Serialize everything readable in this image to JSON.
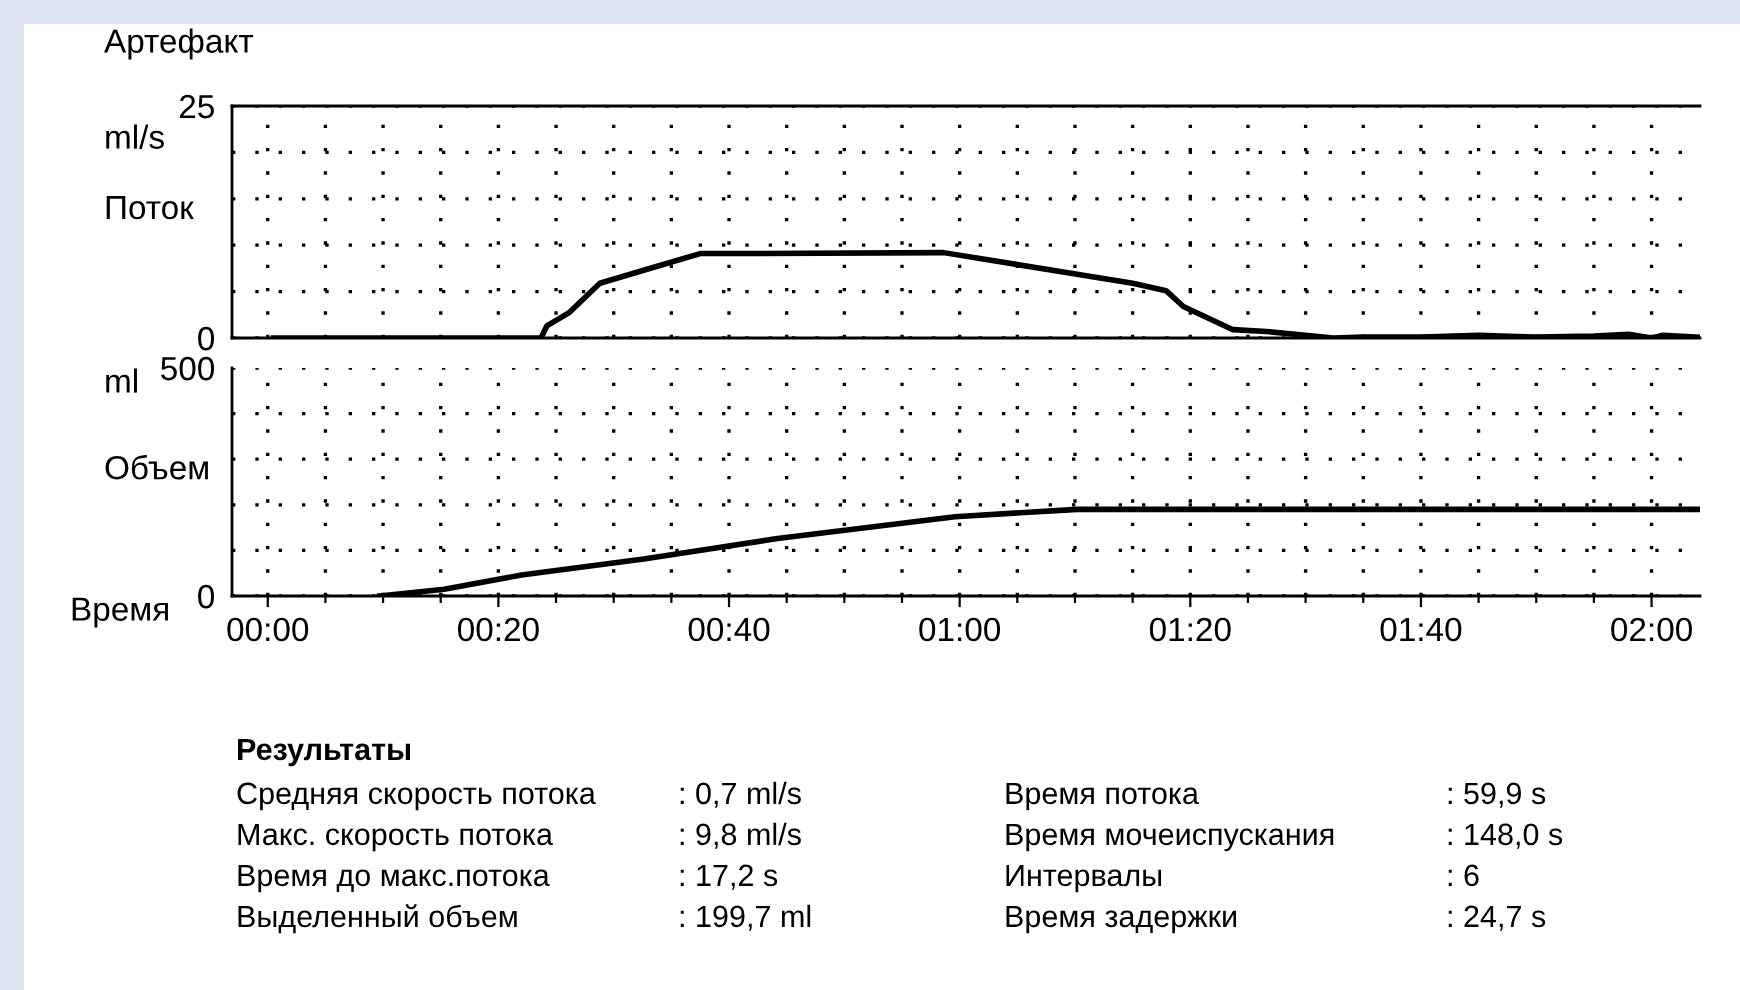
{
  "chart_data": [
    {
      "type": "line",
      "ylabel": "Поток",
      "annotations": [
        "Артефакт",
        "ml/s"
      ],
      "xlim": [
        -3.1,
        124.2
      ],
      "ylim": [
        0,
        25
      ],
      "xticks": [
        {
          "value": 0,
          "label": null
        },
        {
          "value": 5,
          "label": null
        },
        {
          "value": 10,
          "label": null
        },
        {
          "value": 15,
          "label": null
        },
        {
          "value": 20,
          "label": null
        },
        {
          "value": 25,
          "label": null
        },
        {
          "value": 30,
          "label": null
        },
        {
          "value": 35,
          "label": null
        },
        {
          "value": 40,
          "label": null
        },
        {
          "value": 45,
          "label": null
        },
        {
          "value": 50,
          "label": null
        },
        {
          "value": 55,
          "label": null
        },
        {
          "value": 60,
          "label": null
        },
        {
          "value": 65,
          "label": null
        },
        {
          "value": 70,
          "label": null
        },
        {
          "value": 75,
          "label": null
        },
        {
          "value": 80,
          "label": null
        },
        {
          "value": 85,
          "label": null
        },
        {
          "value": 90,
          "label": null
        },
        {
          "value": 95,
          "label": null
        },
        {
          "value": 100,
          "label": null
        },
        {
          "value": 105,
          "label": null
        },
        {
          "value": 110,
          "label": null
        },
        {
          "value": 115,
          "label": null
        },
        {
          "value": 120,
          "label": null
        }
      ],
      "yticks": [
        0,
        {
          "value": 5,
          "label": null
        },
        {
          "value": 10,
          "label": null
        },
        {
          "value": 15,
          "label": null
        },
        {
          "value": 20,
          "label": null
        },
        25
      ],
      "tick_labels": "y",
      "grid": true,
      "series": [
        {
          "color": "#000000",
          "x": [
            0.5,
            23.7,
            24.2,
            26.1,
            28.8,
            32.6,
            37.5,
            40.3,
            58.6,
            75,
            77.9,
            79.4,
            83.7,
            86.6,
            92.4,
            95,
            100,
            105,
            110,
            115,
            118,
            120,
            121,
            124
          ],
          "values": [
            0,
            0,
            1.3,
            2.7,
            5.9,
            7.3,
            9.1,
            9.1,
            9.2,
            5.9,
            5.1,
            3.4,
            0.9,
            0.7,
            0,
            0.1,
            0.1,
            0.3,
            0.1,
            0.2,
            0.4,
            0,
            0.3,
            0.1
          ]
        }
      ]
    },
    {
      "type": "line",
      "ylabel": "Объем",
      "xlabel": "Время",
      "annotations": [
        "ml",
        "Результаты",
        "Средняя скорость потока",
        ": 0,7 ml/s",
        "Время потока",
        ": 59,9 s",
        "Макс. скорость потока",
        ": 9,8 ml/s",
        "Время мочеиспускания",
        ": 148,0 s",
        "Время до макс.потока",
        ": 17,2 s",
        "Интервалы",
        ": 6",
        "Выделенный объем",
        ": 199,7 ml",
        "Время задержки",
        ": 24,7 s"
      ],
      "xlim": [
        -3.1,
        124.2
      ],
      "ylim": [
        0,
        500
      ],
      "xticks": [
        {
          "value": 0,
          "label": "00:00"
        },
        {
          "value": 5,
          "label": null
        },
        {
          "value": 10,
          "label": null
        },
        {
          "value": 15,
          "label": null
        },
        {
          "value": 20,
          "label": "00:20"
        },
        {
          "value": 25,
          "label": null
        },
        {
          "value": 30,
          "label": null
        },
        {
          "value": 35,
          "label": null
        },
        {
          "value": 40,
          "label": "00:40"
        },
        {
          "value": 45,
          "label": null
        },
        {
          "value": 50,
          "label": null
        },
        {
          "value": 55,
          "label": null
        },
        {
          "value": 60,
          "label": "01:00"
        },
        {
          "value": 65,
          "label": null
        },
        {
          "value": 70,
          "label": null
        },
        {
          "value": 75,
          "label": null
        },
        {
          "value": 80,
          "label": "01:20"
        },
        {
          "value": 85,
          "label": null
        },
        {
          "value": 90,
          "label": null
        },
        {
          "value": 95,
          "label": null
        },
        {
          "value": 100,
          "label": "01:40"
        },
        {
          "value": 105,
          "label": null
        },
        {
          "value": 110,
          "label": null
        },
        {
          "value": 115,
          "label": null
        },
        {
          "value": 120,
          "label": "02:00"
        }
      ],
      "yticks": [
        0,
        {
          "value": 100,
          "label": null
        },
        {
          "value": 200,
          "label": null
        },
        {
          "value": 300,
          "label": null
        },
        {
          "value": 400,
          "label": null
        },
        500
      ],
      "grid": true,
      "series": [
        {
          "color": "#000000",
          "x": [
            9.7,
            15.3,
            22,
            32.6,
            44.2,
            59.6,
            70.2,
            124.2
          ],
          "values": [
            0,
            15,
            46,
            81,
            126,
            174,
            190,
            190
          ]
        }
      ]
    }
  ]
}
